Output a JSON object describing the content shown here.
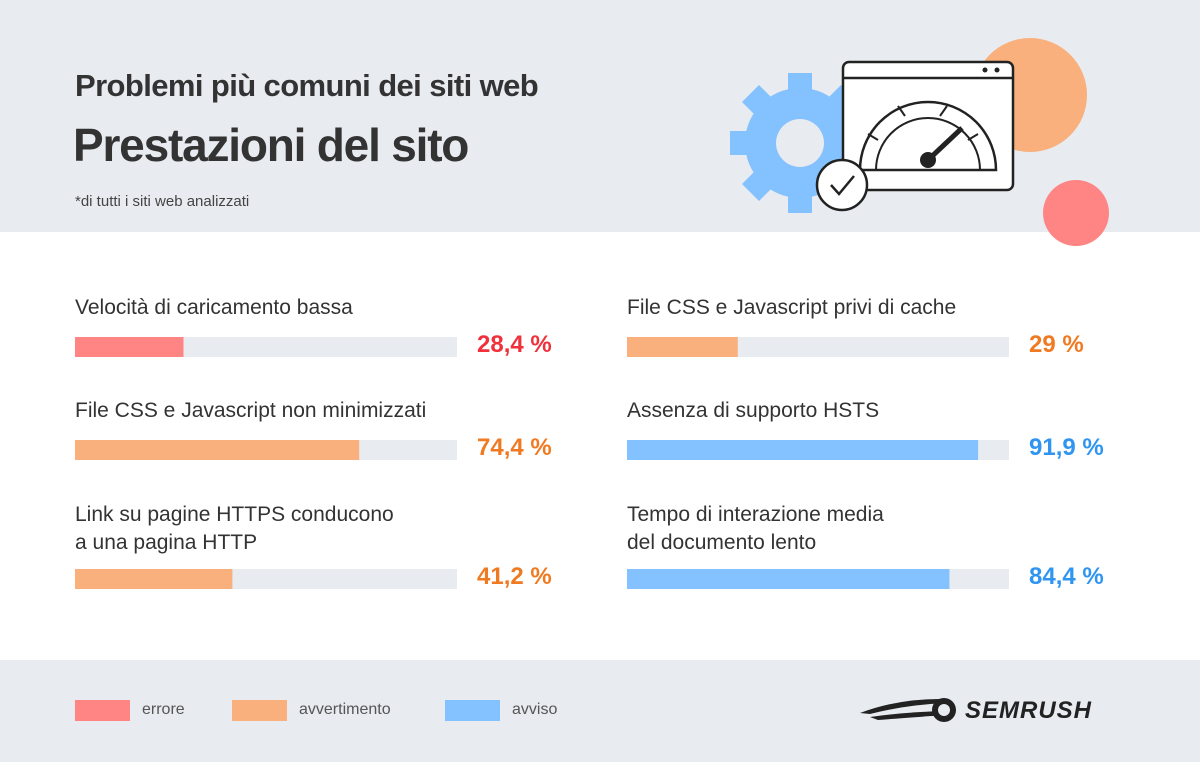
{
  "chart_data": {
    "type": "progress",
    "title": "Problemi più comuni dei siti web",
    "subtitle": "Prestazioni del sito",
    "note": "*di tutti i siti web analizzati",
    "xlim": [
      0,
      100
    ],
    "categories": [
      "Velocità di caricamento bassa",
      "File CSS e Javascript non minimizzati",
      "Link su pagine HTTPS conducono\na una pagina HTTP",
      "File CSS e Javascript privi di cache",
      "Assenza di supporto HSTS",
      "Tempo di interazione media\ndel documento lento"
    ],
    "values": [
      28.4,
      74.4,
      41.2,
      29,
      91.9,
      84.4
    ],
    "value_labels": [
      "28,4 %",
      "74,4 %",
      "41,2 %",
      "29 %",
      "91,9 %",
      "84,4 %"
    ],
    "colors": [
      "#ff8585",
      "#f9b07c",
      "#f9b07c",
      "#f9b07c",
      "#84c1ff",
      "#84c1ff"
    ],
    "label_colors": [
      "#f0303a",
      "#f07a22",
      "#f07a22",
      "#f07a22",
      "#2f95f0",
      "#2f95f0"
    ],
    "track_color": "#e8ebf0",
    "legend": [
      {
        "name": "errore",
        "color": "#ff8585"
      },
      {
        "name": "avvertimento",
        "color": "#f9b07c"
      },
      {
        "name": "avviso",
        "color": "#84c1ff"
      }
    ],
    "brand": "SEMRUSH"
  }
}
